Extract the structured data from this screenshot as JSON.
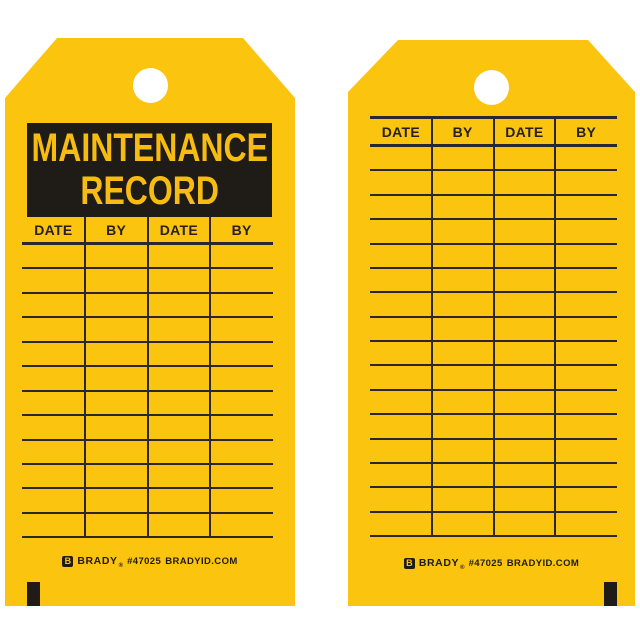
{
  "colors": {
    "background": "#ffffff",
    "tag_yellow": "#FBC40F",
    "ink_black": "#1F1B17",
    "grid_line": "#2A2733",
    "title_yellow": "#F6BC12"
  },
  "front_tag": {
    "title_line1": "MAINTENANCE",
    "title_line2": "RECORD",
    "table": {
      "headers": [
        "DATE",
        "BY",
        "DATE",
        "BY"
      ],
      "blank_rows": 12
    },
    "footer": {
      "logo_letter": "B",
      "brand": "BRADY",
      "reg": "®",
      "part_number": "#47025",
      "website": "BRADYID.COM"
    }
  },
  "back_tag": {
    "table": {
      "headers": [
        "DATE",
        "BY",
        "DATE",
        "BY"
      ],
      "blank_rows": 16
    },
    "footer": {
      "logo_letter": "B",
      "brand": "BRADY",
      "reg": "®",
      "part_number": "#47025",
      "website": "BRADYID.COM"
    }
  }
}
